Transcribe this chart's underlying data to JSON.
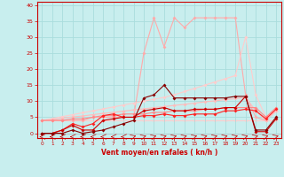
{
  "title": "",
  "xlabel": "Vent moyen/en rafales ( kn/h )",
  "ylabel": "",
  "xlim": [
    -0.5,
    23.5
  ],
  "ylim": [
    -1.5,
    41
  ],
  "yticks": [
    0,
    5,
    10,
    15,
    20,
    25,
    30,
    35,
    40
  ],
  "xticks": [
    0,
    1,
    2,
    3,
    4,
    5,
    6,
    7,
    8,
    9,
    10,
    11,
    12,
    13,
    14,
    15,
    16,
    17,
    18,
    19,
    20,
    21,
    22,
    23
  ],
  "bg_color": "#c8eeee",
  "grid_color": "#aadddd",
  "series": [
    {
      "x": [
        0,
        1,
        2,
        3,
        4,
        5,
        6,
        7,
        8,
        9,
        10,
        11,
        12,
        13,
        14,
        15,
        16,
        17,
        18,
        19,
        20,
        21,
        22,
        23
      ],
      "y": [
        4,
        4,
        4,
        4,
        4,
        5,
        5,
        5,
        5,
        5,
        25,
        36,
        27,
        36,
        33,
        36,
        36,
        36,
        36,
        36,
        12,
        5,
        4,
        7
      ],
      "color": "#ffaaaa",
      "marker": "D",
      "markersize": 2,
      "linewidth": 0.8,
      "zorder": 2
    },
    {
      "x": [
        0,
        1,
        2,
        3,
        4,
        5,
        6,
        7,
        8,
        9,
        10,
        11,
        12,
        13,
        14,
        15,
        16,
        17,
        18,
        19,
        20,
        21,
        22,
        23
      ],
      "y": [
        4,
        4.6,
        5.2,
        5.8,
        6.4,
        7,
        7.6,
        8.2,
        8.8,
        9.4,
        10,
        10.6,
        11.2,
        12,
        13,
        14,
        15,
        16,
        17,
        18,
        30,
        12,
        5,
        7
      ],
      "color": "#ffcccc",
      "marker": "D",
      "markersize": 2,
      "linewidth": 0.8,
      "zorder": 2
    },
    {
      "x": [
        0,
        1,
        2,
        3,
        4,
        5,
        6,
        7,
        8,
        9,
        10,
        11,
        12,
        13,
        14,
        15,
        16,
        17,
        18,
        19,
        20,
        21,
        22,
        23
      ],
      "y": [
        4,
        4.3,
        4.7,
        5.1,
        5.4,
        5.8,
        6.2,
        6.5,
        6.9,
        7.3,
        7.6,
        8,
        8.3,
        8.7,
        9,
        9.4,
        9.8,
        10.1,
        10.5,
        10.8,
        11.2,
        7,
        4,
        7
      ],
      "color": "#ffbbbb",
      "marker": "D",
      "markersize": 2,
      "linewidth": 0.8,
      "zorder": 2
    },
    {
      "x": [
        0,
        1,
        2,
        3,
        4,
        5,
        6,
        7,
        8,
        9,
        10,
        11,
        12,
        13,
        14,
        15,
        16,
        17,
        18,
        19,
        20,
        21,
        22,
        23
      ],
      "y": [
        4,
        4,
        4,
        4,
        4,
        4,
        4,
        4,
        4,
        4,
        4,
        4,
        4,
        4,
        4,
        4,
        4,
        4,
        4,
        4,
        4,
        4,
        4,
        4
      ],
      "color": "#ffcccc",
      "marker": "D",
      "markersize": 2,
      "linewidth": 0.8,
      "zorder": 1
    },
    {
      "x": [
        0,
        1,
        2,
        3,
        4,
        5,
        6,
        7,
        8,
        9,
        10,
        11,
        12,
        13,
        14,
        15,
        16,
        17,
        18,
        19,
        20,
        21,
        22,
        23
      ],
      "y": [
        0,
        0,
        0,
        1,
        0,
        0.5,
        1,
        2,
        3,
        4,
        11,
        12,
        15,
        11,
        11,
        11,
        11,
        11,
        11,
        11.5,
        11.5,
        1,
        1,
        5
      ],
      "color": "#880000",
      "marker": "D",
      "markersize": 2,
      "linewidth": 0.8,
      "zorder": 5
    },
    {
      "x": [
        0,
        1,
        2,
        3,
        4,
        5,
        6,
        7,
        8,
        9,
        10,
        11,
        12,
        13,
        14,
        15,
        16,
        17,
        18,
        19,
        20,
        21,
        22,
        23
      ],
      "y": [
        0,
        0,
        1,
        2.5,
        1,
        1,
        4,
        4.5,
        5,
        5,
        7,
        7.5,
        8,
        7,
        7,
        7.5,
        7.5,
        7.5,
        8,
        8,
        11.5,
        0.5,
        0.5,
        4.5
      ],
      "color": "#cc0000",
      "marker": "D",
      "markersize": 2,
      "linewidth": 0.8,
      "zorder": 4
    },
    {
      "x": [
        0,
        1,
        2,
        3,
        4,
        5,
        6,
        7,
        8,
        9,
        10,
        11,
        12,
        13,
        14,
        15,
        16,
        17,
        18,
        19,
        20,
        21,
        22,
        23
      ],
      "y": [
        0,
        0,
        1,
        3,
        2,
        3,
        5.5,
        6,
        5,
        5,
        5.5,
        5.5,
        6,
        5.5,
        5.5,
        6,
        6,
        6,
        7,
        7,
        7.5,
        7,
        4.5,
        7.5
      ],
      "color": "#ff2222",
      "marker": "D",
      "markersize": 2,
      "linewidth": 0.8,
      "zorder": 3
    },
    {
      "x": [
        0,
        1,
        2,
        3,
        4,
        5,
        6,
        7,
        8,
        9,
        10,
        11,
        12,
        13,
        14,
        15,
        16,
        17,
        18,
        19,
        20,
        21,
        22,
        23
      ],
      "y": [
        4,
        4,
        4,
        4.5,
        4.5,
        5,
        5.5,
        5.5,
        6,
        6,
        6,
        6.5,
        6.5,
        7,
        7,
        7,
        7.5,
        7.5,
        8,
        8,
        8,
        8,
        5,
        8
      ],
      "color": "#ff8888",
      "marker": "D",
      "markersize": 2,
      "linewidth": 0.8,
      "zorder": 2
    }
  ],
  "arrow_row": {
    "color": "#cc0000",
    "y_line": -0.5
  }
}
